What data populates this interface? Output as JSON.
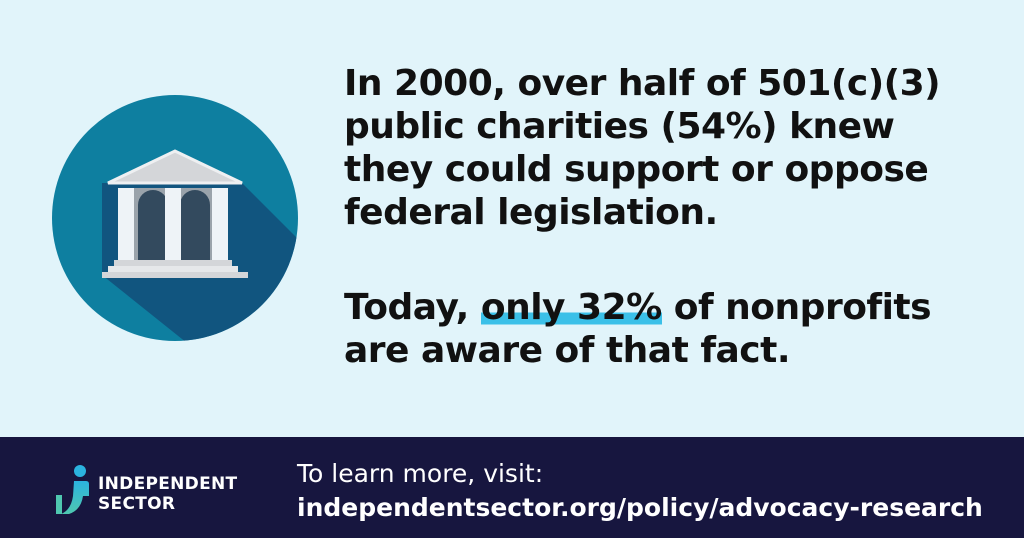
{
  "colors": {
    "background": "#e1f4fa",
    "circle": "#0e7fa0",
    "shadow": "#11557f",
    "highlight": "#3bc0e8",
    "footer": "#17163f"
  },
  "illustration": {
    "icon": "government-building-icon"
  },
  "statement": {
    "p1": "In 2000, over half of 501(c)(3) public charities (54%) knew they could support or oppose federal legislation.",
    "p2_before": "Today, ",
    "p2_highlight": "only 32%",
    "p2_after": " of nonprofits are aware of that fact."
  },
  "footer": {
    "logo_line1": "INDEPENDENT",
    "logo_line2": "SECTOR",
    "cta": "To learn more, visit:",
    "url": "independentsector.org/policy/advocacy-research"
  }
}
